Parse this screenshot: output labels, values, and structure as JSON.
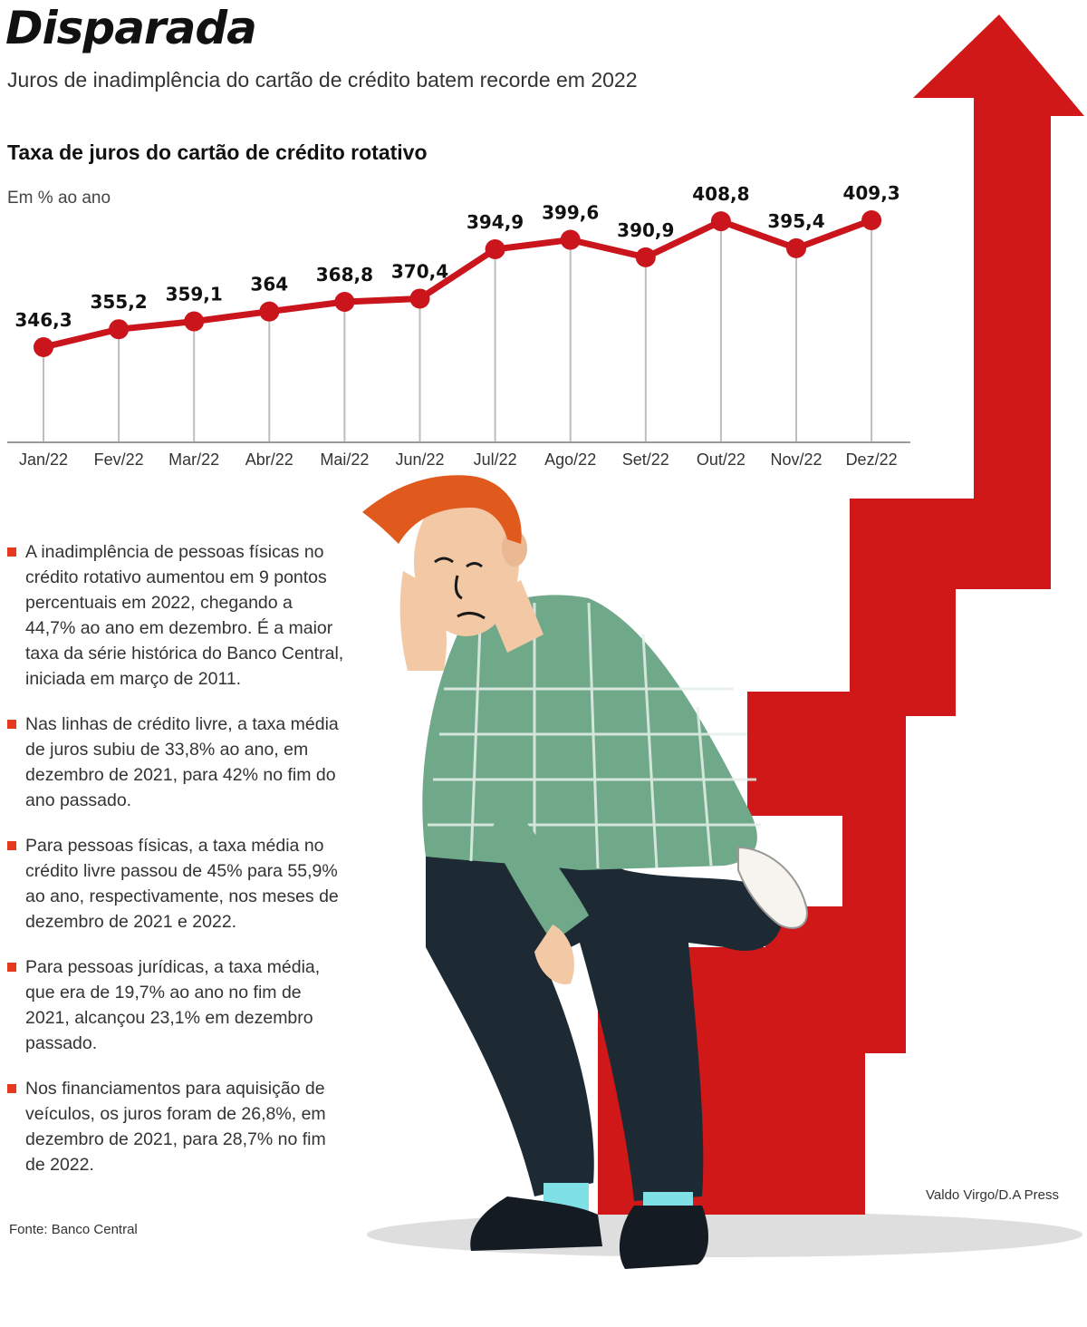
{
  "header": {
    "title": "Disparada",
    "subtitle": "Juros de inadimplência do cartão de crédito batem recorde em 2022"
  },
  "colors": {
    "accent": "#d01818",
    "line": "#c9151b",
    "bullet": "#e53a1e"
  },
  "chart_data": {
    "type": "line",
    "title": "Taxa de juros do cartão de crédito rotativo",
    "ylabel": "Em % ao ano",
    "xlabel": "",
    "categories": [
      "Jan/22",
      "Fev/22",
      "Mar/22",
      "Abr/22",
      "Mai/22",
      "Jun/22",
      "Jul/22",
      "Ago/22",
      "Set/22",
      "Out/22",
      "Nov/22",
      "Dez/22"
    ],
    "values": [
      346.3,
      355.2,
      359.1,
      364,
      368.8,
      370.4,
      394.9,
      399.6,
      390.9,
      408.8,
      395.4,
      409.3
    ],
    "value_labels": [
      "346,3",
      "355,2",
      "359,1",
      "364",
      "368,8",
      "370,4",
      "394,9",
      "399,6",
      "390,9",
      "408,8",
      "395,4",
      "409,3"
    ],
    "ylim": [
      300,
      420
    ],
    "grid": true
  },
  "bullets": [
    "A inadimplência de pessoas físicas no crédito rotativo aumentou em 9 pontos percentuais em 2022, chegando a 44,7% ao ano em dezembro. É a maior taxa da série histórica do Banco Central, iniciada em março de 2011.",
    "Nas linhas de crédito livre, a taxa média de juros subiu de 33,8% ao ano, em dezembro de 2021, para 42% no fim do ano passado.",
    "Para pessoas físicas, a taxa média no crédito livre passou de 45% para 55,9% ao ano, respectivamente, nos meses de dezembro de 2021 e 2022.",
    "Para pessoas jurídicas, a taxa média, que era de 19,7% ao ano no fim de 2021, alcançou 23,1% em dezembro passado.",
    "Nos financiamentos para aquisição de veículos, os juros foram de 26,8%, em dezembro de 2021, para 28,7% no fim de 2022."
  ],
  "footer": {
    "source": "Fonte: Banco Central",
    "credit": "Valdo Virgo/D.A Press"
  }
}
